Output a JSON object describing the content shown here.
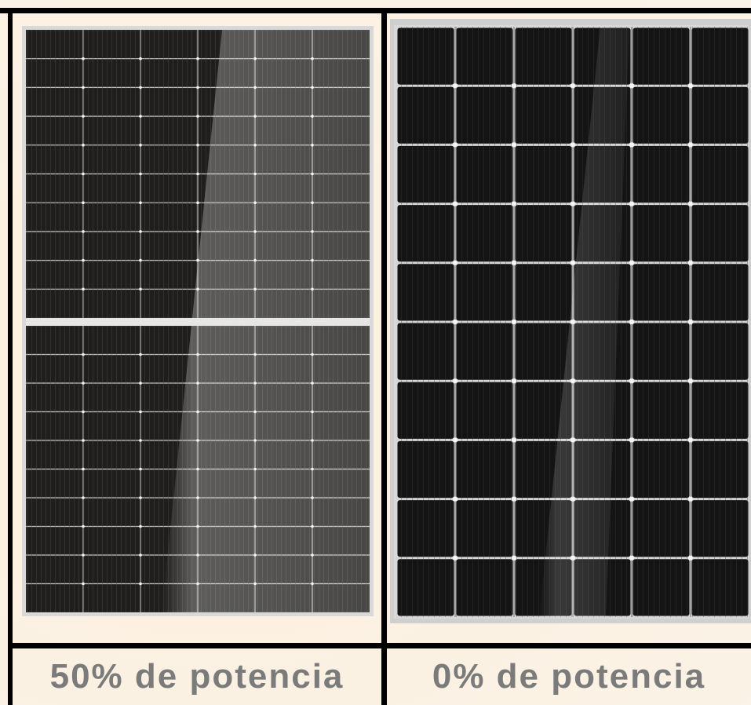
{
  "captions": {
    "left": "50% de potencia",
    "right": "0% de potencia"
  },
  "colors": {
    "background": "#fbf2e4",
    "divider": "#000000",
    "caption_text": "#7b7b7b",
    "cell_dark": "#1e1d1c",
    "frame_silver": "#d9d9d9"
  }
}
